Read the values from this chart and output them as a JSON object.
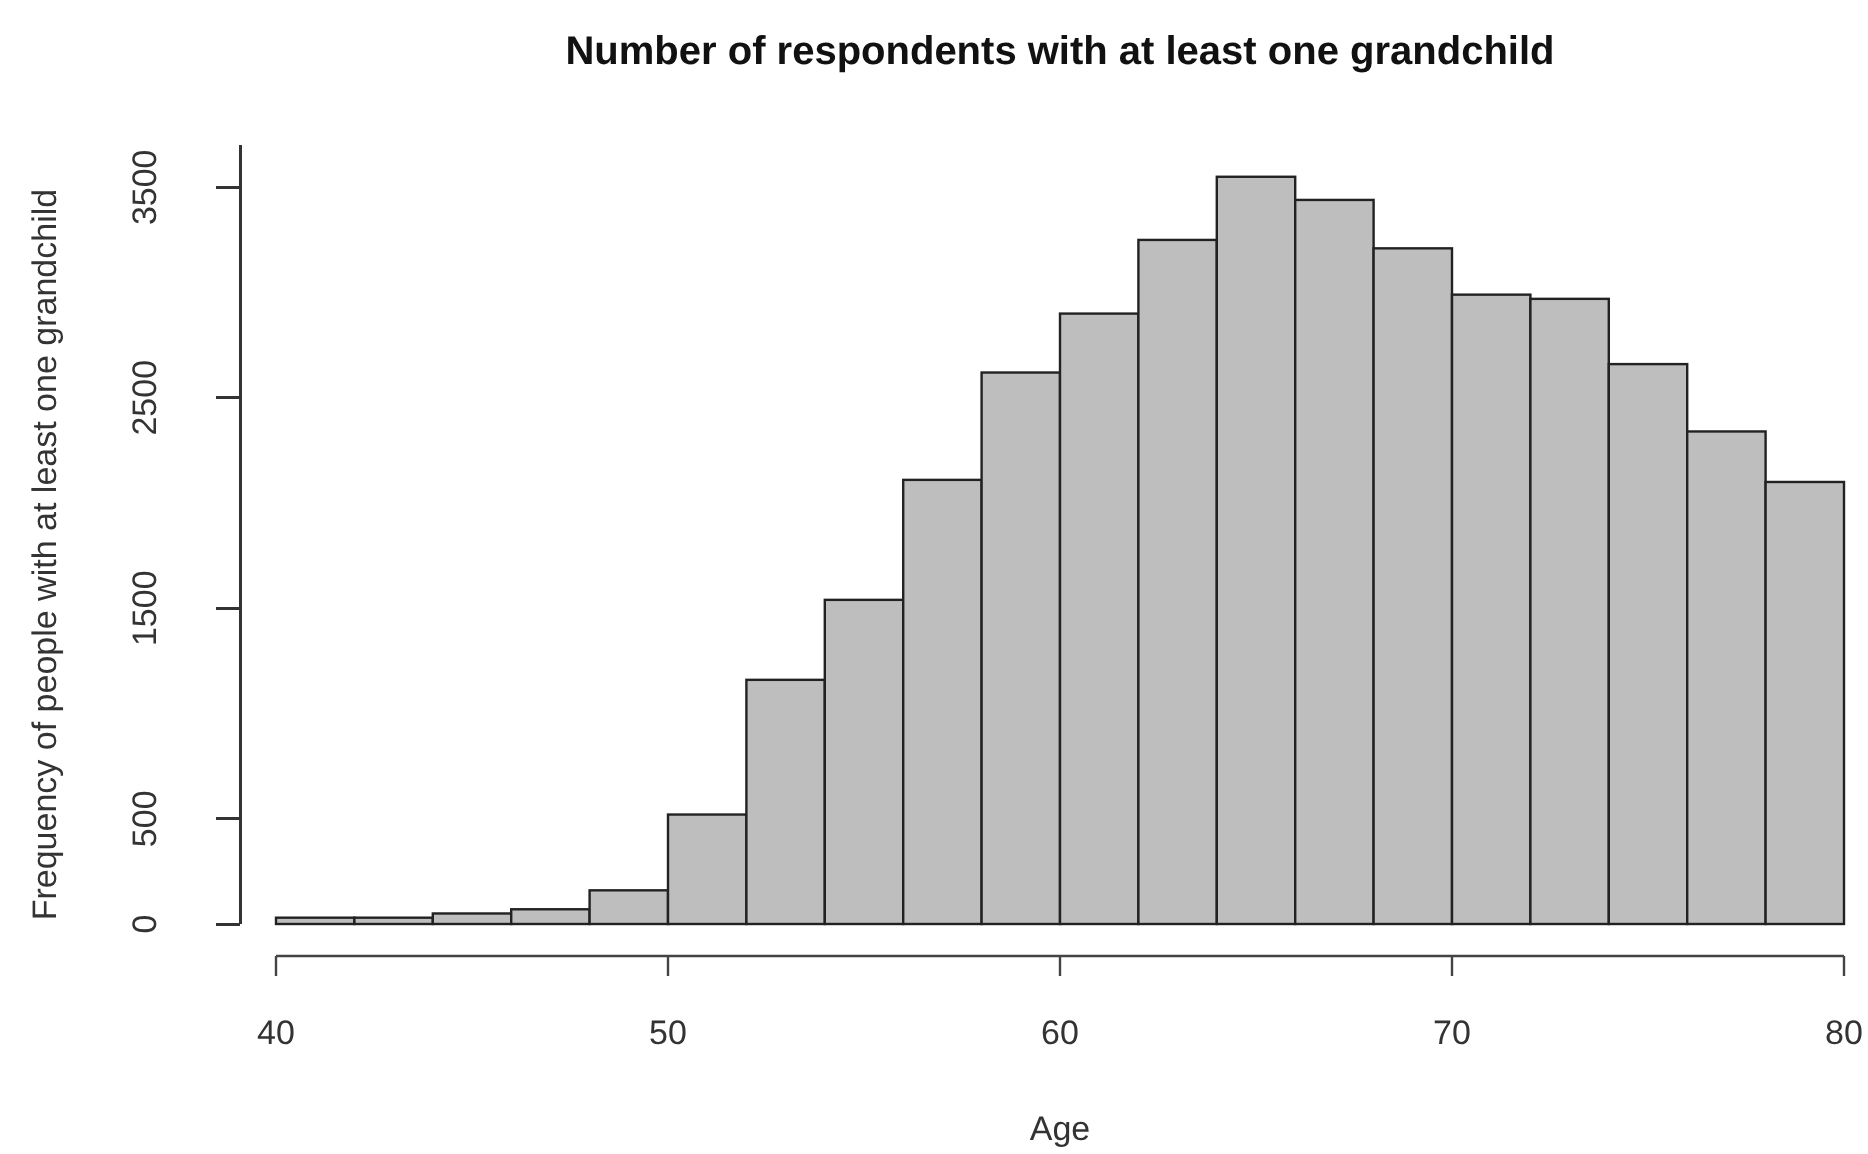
{
  "chart_data": {
    "type": "histogram",
    "title": "Number of respondents with at least one grandchild",
    "xlabel": "Age",
    "ylabel": "Frequency of people with at least one grandchild",
    "bins": [
      40,
      42,
      44,
      46,
      48,
      50,
      52,
      54,
      56,
      58,
      60,
      62,
      64,
      66,
      68,
      70,
      72,
      74,
      76,
      78,
      80
    ],
    "values": [
      30,
      30,
      50,
      70,
      160,
      520,
      1160,
      1540,
      2110,
      2620,
      2900,
      3250,
      3550,
      3440,
      3210,
      2990,
      2970,
      2660,
      2340,
      2100
    ],
    "color": "#bebebe",
    "xlim": [
      40,
      80
    ],
    "xticks": [
      40,
      50,
      60,
      70,
      80
    ],
    "ylim": [
      0,
      3700
    ],
    "yticks": [
      0,
      500,
      1500,
      2500,
      3500
    ]
  }
}
